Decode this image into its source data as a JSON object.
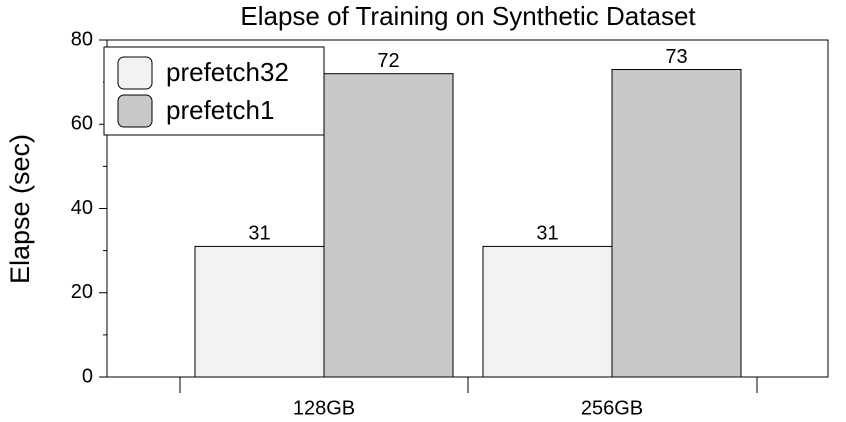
{
  "chart_data": {
    "type": "bar",
    "title": "Elapse of Training on Synthetic Dataset",
    "y_label": "Elapse (sec)",
    "categories": [
      "128GB",
      "256GB"
    ],
    "series": [
      {
        "name": "prefetch32",
        "color": "#f2f2f2",
        "values": [
          31,
          31
        ]
      },
      {
        "name": "prefetch1",
        "color": "#c8c8c8",
        "values": [
          72,
          73
        ]
      }
    ],
    "ylim": [
      0,
      80
    ],
    "yticks": [
      0,
      20,
      40,
      60,
      80
    ],
    "legend": "upper-left"
  }
}
